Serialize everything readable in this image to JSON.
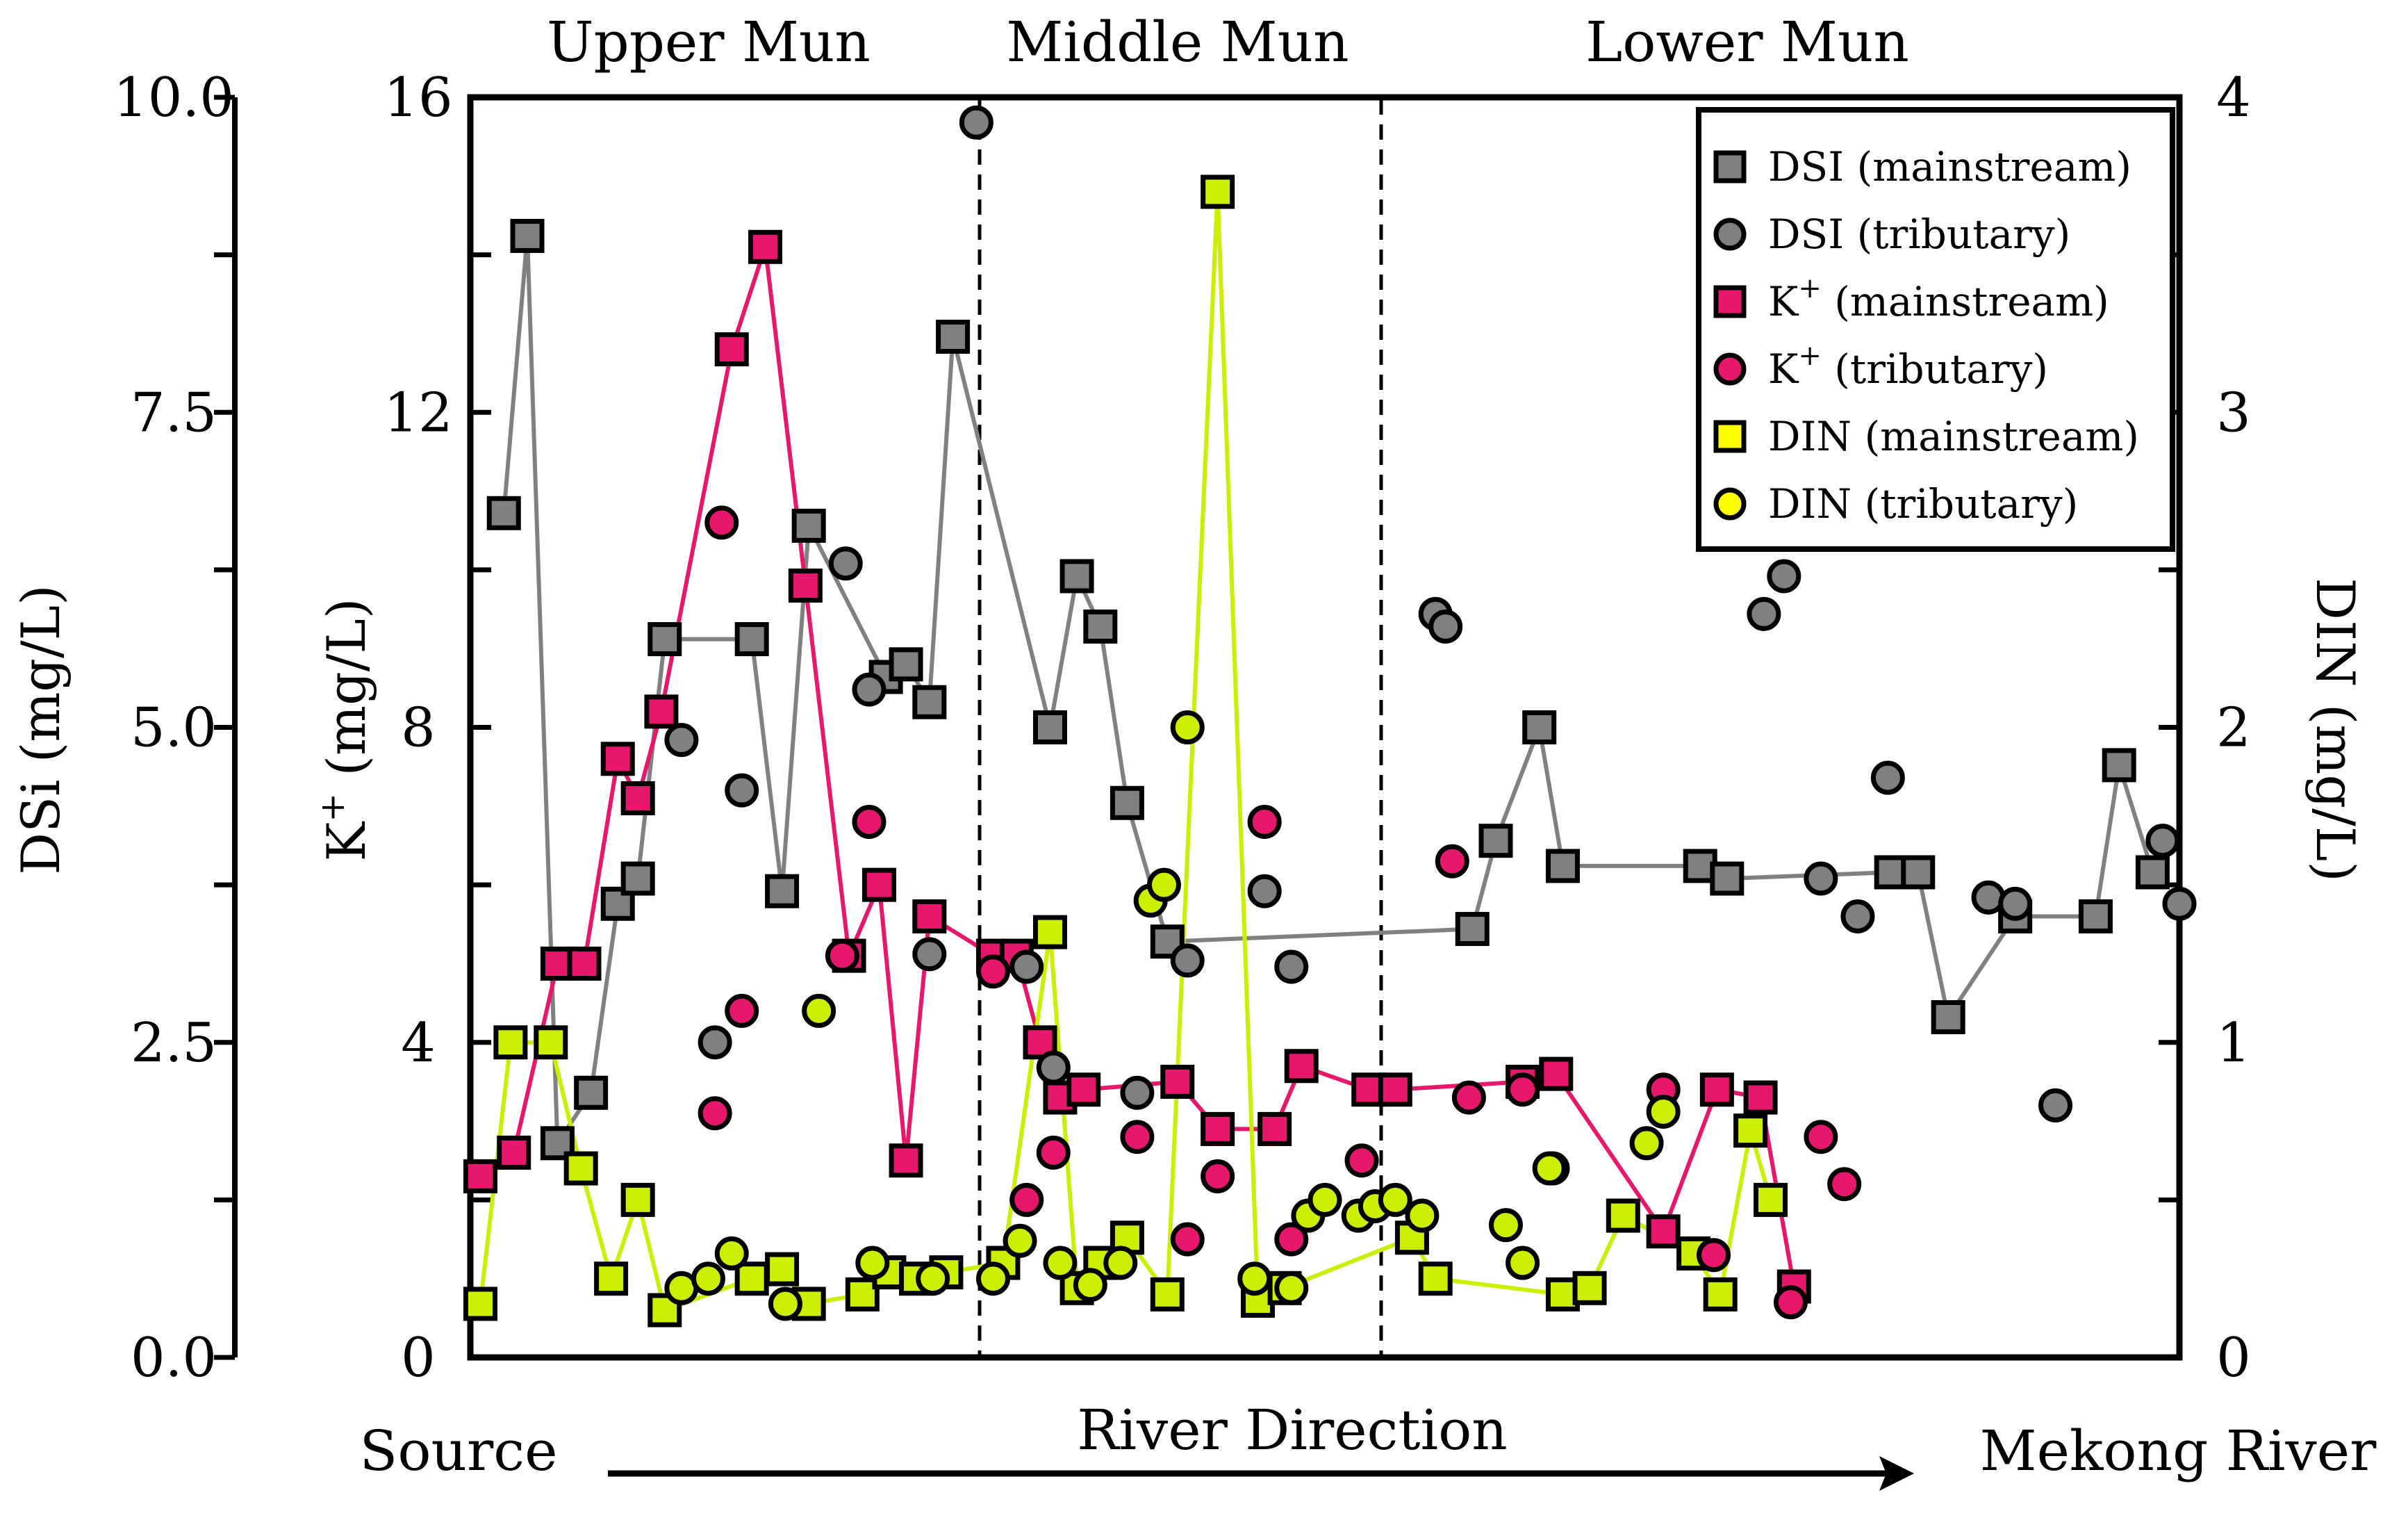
{
  "chart_data": {
    "type": "scatter",
    "title": "",
    "sections": [
      {
        "label": "Upper Mun",
        "x_start": 0,
        "x_end": 15
      },
      {
        "label": "Middle Mun",
        "x_start": 15,
        "x_end": 27
      },
      {
        "label": "Lower Mun",
        "x_start": 27,
        "x_end": 51
      }
    ],
    "xlabel": "River Direction",
    "x_start_label": "Source",
    "x_end_label": "Mekong River",
    "xlim": [
      0,
      51
    ],
    "axes": {
      "dsi": {
        "label": "DSi (mg/L)",
        "ylim": [
          0,
          10
        ],
        "ticks": [
          "0.0",
          "2.5",
          "5.0",
          "7.5",
          "10.0"
        ]
      },
      "k": {
        "label_main": "K",
        "label_sup": "+",
        "label_unit": " (mg/L)",
        "ylim": [
          0,
          16
        ],
        "ticks": [
          "0",
          "4",
          "8",
          "12",
          "16"
        ]
      },
      "din": {
        "label": "DIN (mg/L)",
        "ylim": [
          0,
          4
        ],
        "ticks": [
          "0",
          "1",
          "2",
          "3",
          "4"
        ]
      }
    },
    "legend": [
      {
        "label": "DSI",
        "qualifier": "(mainstream)",
        "shape": "square",
        "color": "#808080"
      },
      {
        "label": "DSI",
        "qualifier": "(tributary)",
        "shape": "circle",
        "color": "#808080"
      },
      {
        "label": "K",
        "sup": "+",
        "qualifier": "(mainstream)",
        "shape": "square",
        "color": "#e8176e"
      },
      {
        "label": "K",
        "sup": "+",
        "qualifier": "(tributary)",
        "shape": "circle",
        "color": "#e8176e"
      },
      {
        "label": "DIN",
        "qualifier": "(mainstream)",
        "shape": "square",
        "color": "#ffff00"
      },
      {
        "label": "DIN",
        "qualifier": "(tributary)",
        "shape": "circle",
        "color": "#ffff00"
      }
    ],
    "series": [
      {
        "name": "DSI (mainstream)",
        "axis": "dsi",
        "shape": "square",
        "color": "#808080",
        "line_color": "#808080",
        "points": [
          [
            1,
            6.7
          ],
          [
            1.7,
            8.9
          ],
          [
            2.6,
            1.7
          ],
          [
            3.6,
            2.1
          ],
          [
            4.4,
            3.6
          ],
          [
            5,
            3.8
          ],
          [
            5.8,
            5.7
          ],
          [
            8.4,
            5.7
          ],
          [
            9.3,
            3.7
          ],
          [
            10.1,
            6.6
          ],
          [
            12.4,
            5.4
          ],
          [
            13,
            5.5
          ],
          [
            13.7,
            5.2
          ],
          [
            14.4,
            8.1
          ],
          [
            17.3,
            5.0
          ],
          [
            18.1,
            6.2
          ],
          [
            18.8,
            5.8
          ],
          [
            19.6,
            4.4
          ],
          [
            20.8,
            3.3
          ],
          [
            29.9,
            3.4
          ],
          [
            30.6,
            4.1
          ],
          [
            31.9,
            5.0
          ],
          [
            32.6,
            3.9
          ],
          [
            36.7,
            3.9
          ],
          [
            37.5,
            3.8
          ],
          [
            42.4,
            3.85
          ],
          [
            43.2,
            3.85
          ],
          [
            44.1,
            2.7
          ],
          [
            46.1,
            3.5
          ],
          [
            48.5,
            3.5
          ],
          [
            49.2,
            4.7
          ],
          [
            50.2,
            3.85
          ]
        ]
      },
      {
        "name": "DSI (tributary)",
        "axis": "dsi",
        "shape": "circle",
        "color": "#808080",
        "points": [
          [
            6.3,
            4.9
          ],
          [
            7.3,
            2.5
          ],
          [
            8.1,
            4.5
          ],
          [
            11.2,
            6.3
          ],
          [
            11.9,
            5.3
          ],
          [
            13.7,
            3.2
          ],
          [
            15.1,
            9.8
          ],
          [
            16.6,
            3.1
          ],
          [
            17.4,
            2.3
          ],
          [
            19.9,
            2.1
          ],
          [
            21.4,
            3.15
          ],
          [
            23.7,
            3.7
          ],
          [
            24.5,
            3.1
          ],
          [
            28.8,
            5.9
          ],
          [
            29.1,
            5.8
          ],
          [
            38.6,
            5.9
          ],
          [
            39.2,
            6.2
          ],
          [
            40.3,
            3.8
          ],
          [
            41.4,
            3.5
          ],
          [
            42.3,
            4.6
          ],
          [
            45.3,
            3.65
          ],
          [
            46.1,
            3.6
          ],
          [
            47.3,
            2.0
          ],
          [
            50.5,
            4.1
          ],
          [
            51,
            3.6
          ]
        ]
      },
      {
        "name": "K+ (mainstream)",
        "axis": "k",
        "shape": "square",
        "color": "#e8176e",
        "line_color": "#e8176e",
        "points": [
          [
            0.3,
            2.3
          ],
          [
            1.3,
            2.6
          ],
          [
            2.6,
            5.0
          ],
          [
            3.4,
            5.0
          ],
          [
            4.4,
            7.6
          ],
          [
            5,
            7.1
          ],
          [
            5.7,
            8.2
          ],
          [
            7.8,
            12.8
          ],
          [
            8.8,
            14.1
          ],
          [
            10,
            9.8
          ],
          [
            11.3,
            5.1
          ],
          [
            12.2,
            6.0
          ],
          [
            13,
            2.5
          ],
          [
            13.7,
            5.6
          ],
          [
            15.6,
            5.1
          ],
          [
            16.3,
            5.1
          ],
          [
            17,
            4.0
          ],
          [
            17.6,
            3.3
          ],
          [
            18.3,
            3.4
          ],
          [
            21.1,
            3.5
          ],
          [
            22.3,
            2.9
          ],
          [
            24,
            2.9
          ],
          [
            24.8,
            3.7
          ],
          [
            26.8,
            3.4
          ],
          [
            27.6,
            3.4
          ],
          [
            31.4,
            3.5
          ],
          [
            32.4,
            3.6
          ],
          [
            35.6,
            1.6
          ],
          [
            37.2,
            3.4
          ],
          [
            38.5,
            3.3
          ],
          [
            39.5,
            0.9
          ]
        ]
      },
      {
        "name": "K+ (tributary)",
        "axis": "k",
        "shape": "circle",
        "color": "#e8176e",
        "points": [
          [
            7.5,
            10.6
          ],
          [
            7.3,
            3.1
          ],
          [
            8.1,
            4.4
          ],
          [
            11.1,
            5.1
          ],
          [
            11.9,
            6.8
          ],
          [
            15.6,
            4.9
          ],
          [
            16.6,
            2.0
          ],
          [
            17.4,
            2.6
          ],
          [
            19.9,
            2.8
          ],
          [
            21.4,
            1.5
          ],
          [
            22.3,
            2.3
          ],
          [
            23.7,
            6.8
          ],
          [
            24.5,
            1.5
          ],
          [
            26.6,
            2.5
          ],
          [
            29.3,
            6.3
          ],
          [
            29.8,
            3.3
          ],
          [
            31.4,
            3.4
          ],
          [
            32.3,
            2.4
          ],
          [
            35.6,
            3.4
          ],
          [
            37.1,
            1.3
          ],
          [
            39.4,
            0.7
          ],
          [
            40.3,
            2.8
          ],
          [
            41,
            2.2
          ]
        ]
      },
      {
        "name": "DIN (mainstream)",
        "axis": "din",
        "shape": "square",
        "color": "#ccee00",
        "line_color": "#ccee00",
        "points": [
          [
            0.3,
            0.17
          ],
          [
            1.2,
            1.0
          ],
          [
            2.4,
            1.0
          ],
          [
            3.3,
            0.6
          ],
          [
            4.2,
            0.25
          ],
          [
            5,
            0.5
          ],
          [
            5.8,
            0.15
          ],
          [
            8.4,
            0.25
          ],
          [
            9.3,
            0.28
          ],
          [
            10.1,
            0.17
          ],
          [
            11.7,
            0.2
          ],
          [
            12.5,
            0.27
          ],
          [
            13.3,
            0.25
          ],
          [
            14.2,
            0.27
          ],
          [
            15.9,
            0.3
          ],
          [
            17.3,
            1.35
          ],
          [
            18.1,
            0.22
          ],
          [
            18.8,
            0.3
          ],
          [
            19.6,
            0.38
          ],
          [
            20.8,
            0.2
          ],
          [
            22.3,
            3.7
          ],
          [
            23.5,
            0.18
          ],
          [
            24.3,
            0.22
          ],
          [
            28.1,
            0.38
          ],
          [
            28.8,
            0.25
          ],
          [
            32.6,
            0.2
          ],
          [
            33.4,
            0.22
          ],
          [
            34.4,
            0.45
          ],
          [
            36.5,
            0.33
          ],
          [
            37.3,
            0.2
          ],
          [
            38.2,
            0.72
          ],
          [
            38.8,
            0.5
          ]
        ]
      },
      {
        "name": "DIN (tributary)",
        "axis": "din",
        "shape": "circle",
        "color": "#ccee00",
        "points": [
          [
            6.3,
            0.22
          ],
          [
            7.1,
            0.25
          ],
          [
            7.8,
            0.33
          ],
          [
            9.4,
            0.17
          ],
          [
            10.4,
            1.1
          ],
          [
            12,
            0.3
          ],
          [
            13.8,
            0.25
          ],
          [
            15.6,
            0.25
          ],
          [
            16.4,
            0.37
          ],
          [
            17.6,
            0.3
          ],
          [
            18.5,
            0.23
          ],
          [
            19.4,
            0.3
          ],
          [
            20.3,
            1.45
          ],
          [
            20.7,
            1.5
          ],
          [
            21.4,
            2.0
          ],
          [
            23.4,
            0.25
          ],
          [
            24.5,
            0.22
          ],
          [
            25,
            0.45
          ],
          [
            25.5,
            0.5
          ],
          [
            26.5,
            0.45
          ],
          [
            27,
            0.48
          ],
          [
            27.6,
            0.5
          ],
          [
            28.4,
            0.45
          ],
          [
            30.9,
            0.42
          ],
          [
            31.4,
            0.3
          ],
          [
            32.2,
            0.6
          ],
          [
            35.1,
            0.68
          ],
          [
            35.6,
            0.78
          ]
        ]
      }
    ]
  }
}
